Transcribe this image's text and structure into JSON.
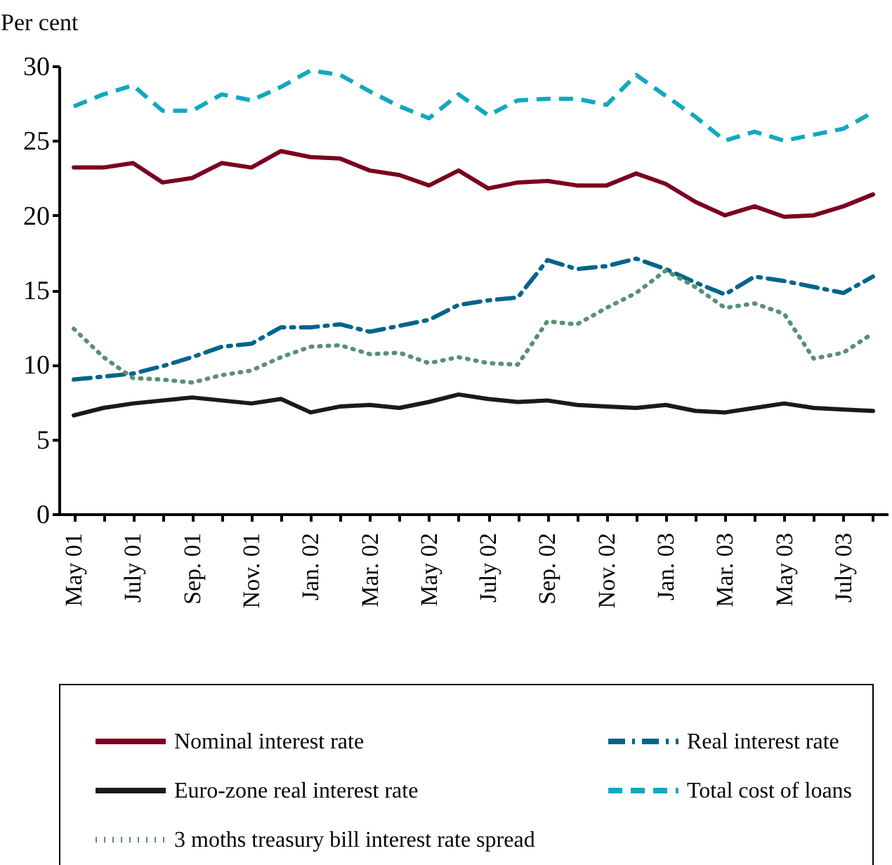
{
  "chart_data": {
    "type": "line",
    "ylabel": "Per cent",
    "categories": [
      "May 01",
      null,
      "July 01",
      null,
      "Sep. 01",
      null,
      "Nov. 01",
      null,
      "Jan. 02",
      null,
      "Mar. 02",
      null,
      "May 02",
      null,
      "July 02",
      null,
      "Sep. 02",
      null,
      "Nov. 02",
      null,
      "Jan. 03",
      null,
      "Mar. 03",
      null,
      "May 03",
      null,
      "July 03",
      null
    ],
    "series": [
      {
        "name": "Nominal interest rate",
        "color": "#7b0020",
        "line_style": "solid",
        "values": [
          23.2,
          23.2,
          23.5,
          22.2,
          22.5,
          23.5,
          23.2,
          24.3,
          23.9,
          23.8,
          23.0,
          22.7,
          22.0,
          23.0,
          21.8,
          22.2,
          22.3,
          22.0,
          22.0,
          22.8,
          22.1,
          20.9,
          20.0,
          20.6,
          19.9,
          20.0,
          20.6,
          21.4
        ]
      },
      {
        "name": "Real interest rate",
        "color": "#00648c",
        "line_style": "dashdot",
        "values": [
          9.0,
          9.2,
          9.4,
          9.9,
          10.5,
          11.2,
          11.4,
          12.5,
          12.5,
          12.7,
          12.2,
          12.6,
          13.0,
          14.0,
          14.3,
          14.5,
          17.0,
          16.4,
          16.6,
          17.1,
          16.4,
          15.5,
          14.7,
          15.9,
          15.6,
          15.2,
          14.8,
          15.9
        ]
      },
      {
        "name": "Euro-zone real interest rate",
        "color": "#1a1a1a",
        "line_style": "solid",
        "values": [
          6.6,
          7.1,
          7.4,
          7.6,
          7.8,
          7.6,
          7.4,
          7.7,
          6.8,
          7.2,
          7.3,
          7.1,
          7.5,
          8.0,
          7.7,
          7.5,
          7.6,
          7.3,
          7.2,
          7.1,
          7.3,
          6.9,
          6.8,
          7.1,
          7.4,
          7.1,
          7.0,
          6.9
        ]
      },
      {
        "name": "Total cost of loans",
        "color": "#12a8c0",
        "line_style": "dashed",
        "values": [
          27.3,
          28.1,
          28.7,
          27.0,
          27.0,
          28.1,
          27.7,
          28.6,
          29.7,
          29.4,
          28.3,
          27.3,
          26.5,
          28.1,
          26.7,
          27.7,
          27.8,
          27.8,
          27.4,
          29.4,
          28.0,
          26.6,
          25.0,
          25.6,
          25.0,
          25.4,
          25.8,
          26.9
        ]
      },
      {
        "name": "3 moths treasury bill interest rate spread",
        "color": "#5a9070",
        "line_style": "dotted",
        "values": [
          12.4,
          10.5,
          9.1,
          9.0,
          8.8,
          9.3,
          9.6,
          10.5,
          11.2,
          11.3,
          10.7,
          10.8,
          10.1,
          10.5,
          10.1,
          10.0,
          12.9,
          12.7,
          13.8,
          14.8,
          16.3,
          15.2,
          13.8,
          14.1,
          13.4,
          10.4,
          10.8,
          12.1
        ]
      }
    ],
    "ylim": [
      0,
      30
    ],
    "yticks": [
      0,
      5,
      10,
      15,
      20,
      25,
      30
    ],
    "grid": false,
    "legend": "bottom"
  }
}
